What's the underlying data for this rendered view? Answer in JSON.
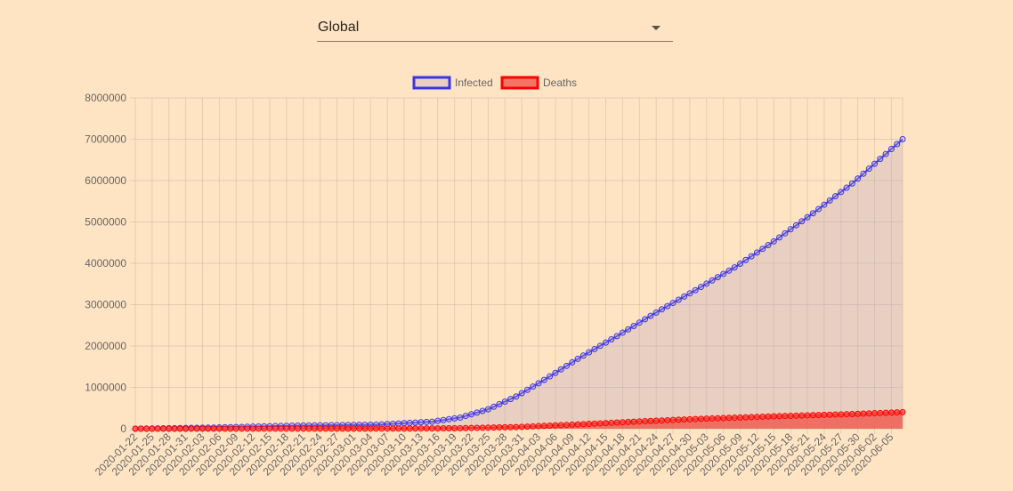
{
  "region_select": {
    "selected": "Global"
  },
  "chart_data": {
    "type": "line",
    "title": "",
    "xlabel": "",
    "ylabel": "",
    "ylim": [
      0,
      8000000
    ],
    "yticks": [
      0,
      1000000,
      2000000,
      3000000,
      4000000,
      5000000,
      6000000,
      7000000,
      8000000
    ],
    "x_start": "2020-01-22",
    "x_end": "2020-06-07",
    "xtick_labels": [
      "2020-01-22",
      "2020-01-25",
      "2020-01-28",
      "2020-01-31",
      "2020-02-03",
      "2020-02-06",
      "2020-02-09",
      "2020-02-12",
      "2020-02-15",
      "2020-02-18",
      "2020-02-21",
      "2020-02-24",
      "2020-02-27",
      "2020-03-01",
      "2020-03-04",
      "2020-03-07",
      "2020-03-10",
      "2020-03-13",
      "2020-03-16",
      "2020-03-19",
      "2020-03-22",
      "2020-03-25",
      "2020-03-28",
      "2020-03-31",
      "2020-04-03",
      "2020-04-06",
      "2020-04-09",
      "2020-04-12",
      "2020-04-15",
      "2020-04-18",
      "2020-04-21",
      "2020-04-24",
      "2020-04-27",
      "2020-04-30",
      "2020-05-03",
      "2020-05-06",
      "2020-05-09",
      "2020-05-12",
      "2020-05-15",
      "2020-05-18",
      "2020-05-21",
      "2020-05-24",
      "2020-05-27",
      "2020-05-30",
      "2020-06-02",
      "2020-06-05"
    ],
    "grid": true,
    "legend_position": "top",
    "series": [
      {
        "name": "Infected",
        "color": "#3b35e8",
        "fill": "rgba(190,170,190,0.35)",
        "points": [
          [
            "2020-01-22",
            600
          ],
          [
            "2020-02-05",
            28000
          ],
          [
            "2020-02-20",
            76000
          ],
          [
            "2020-03-05",
            98000
          ],
          [
            "2020-03-15",
            170000
          ],
          [
            "2020-03-20",
            270000
          ],
          [
            "2020-03-25",
            470000
          ],
          [
            "2020-03-30",
            780000
          ],
          [
            "2020-04-04",
            1180000
          ],
          [
            "2020-04-10",
            1690000
          ],
          [
            "2020-04-17",
            2240000
          ],
          [
            "2020-04-24",
            2810000
          ],
          [
            "2020-05-01",
            3350000
          ],
          [
            "2020-05-08",
            3900000
          ],
          [
            "2020-05-15",
            4530000
          ],
          [
            "2020-05-22",
            5210000
          ],
          [
            "2020-05-29",
            5930000
          ],
          [
            "2020-06-07",
            7000000
          ]
        ]
      },
      {
        "name": "Deaths",
        "color": "#ff0000",
        "fill": "rgba(240,80,70,0.75)",
        "points": [
          [
            "2020-01-22",
            17
          ],
          [
            "2020-02-20",
            2200
          ],
          [
            "2020-03-10",
            4300
          ],
          [
            "2020-03-20",
            12000
          ],
          [
            "2020-03-30",
            40000
          ],
          [
            "2020-04-10",
            104000
          ],
          [
            "2020-04-20",
            170000
          ],
          [
            "2020-05-01",
            235000
          ],
          [
            "2020-05-15",
            300000
          ],
          [
            "2020-05-29",
            355000
          ],
          [
            "2020-06-07",
            400000
          ]
        ]
      }
    ]
  }
}
